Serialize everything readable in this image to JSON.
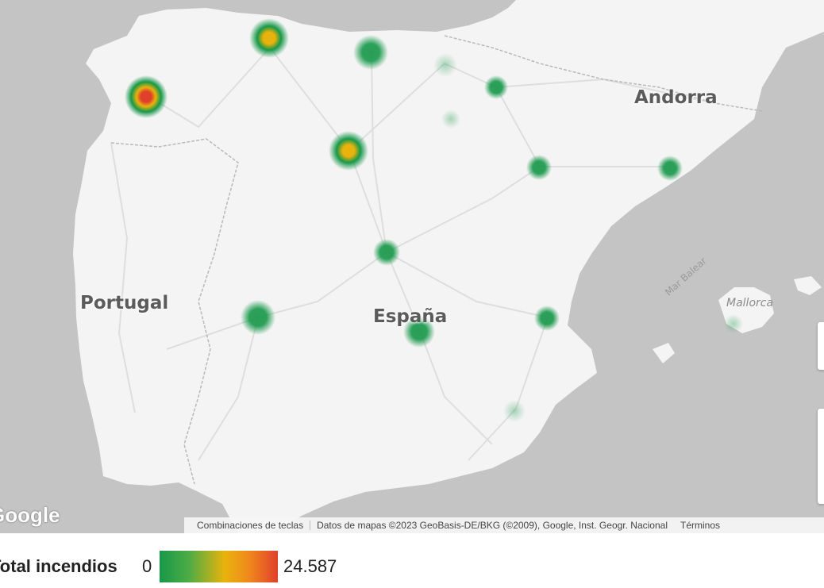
{
  "map": {
    "labels": {
      "andorra": "Andorra",
      "portugal": "Portugal",
      "espana": "España",
      "mallorca": "Mallorca",
      "mar_balear": "Mar Balear"
    },
    "logo": "Google",
    "attribution": {
      "shortcuts": "Combinaciones de teclas",
      "data": "Datos de mapas ©2023 GeoBasis-DE/BKG (©2009), Google, Inst. Geogr. Nacional",
      "terms": "Términos"
    },
    "colors": {
      "water": "#c4c4c4",
      "land": "#f4f4f4",
      "roads": "#dcdcdc"
    }
  },
  "legend": {
    "title": "Total incendios",
    "min": "0",
    "max": "24.587",
    "gradient": [
      "#17984a",
      "#4eac45",
      "#e8b30c",
      "#f08a1c",
      "#e0402b"
    ]
  },
  "hotspots": [
    {
      "name": "galicia-west",
      "level": 1.0
    },
    {
      "name": "asturias",
      "level": 0.7
    },
    {
      "name": "cantabria",
      "level": 0.35
    },
    {
      "name": "leon-zamora",
      "level": 0.7
    },
    {
      "name": "pais-vasco",
      "level": 0.15
    },
    {
      "name": "navarra",
      "level": 0.2
    },
    {
      "name": "soria",
      "level": 0.05
    },
    {
      "name": "zaragoza",
      "level": 0.2
    },
    {
      "name": "barcelona",
      "level": 0.2
    },
    {
      "name": "madrid",
      "level": 0.25
    },
    {
      "name": "caceres",
      "level": 0.4
    },
    {
      "name": "ciudad-real",
      "level": 0.35
    },
    {
      "name": "valencia",
      "level": 0.2
    },
    {
      "name": "murcia",
      "level": 0.05
    },
    {
      "name": "mallorca",
      "level": 0.05
    }
  ]
}
